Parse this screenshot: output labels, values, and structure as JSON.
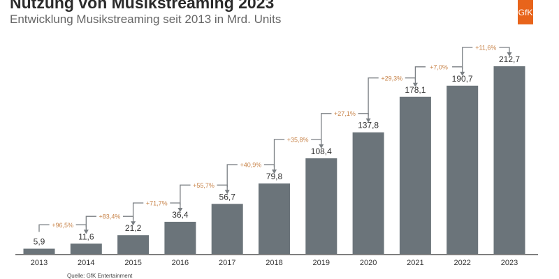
{
  "title": "Nutzung von Musikstreaming 2023",
  "subtitle": "Entwicklung Musikstreaming seit 2013 in Mrd. Units",
  "logo": "GfK",
  "source": "Quelle: GfK Entertainment",
  "colors": {
    "bar": "#6b747a",
    "growth": "#c8844a",
    "arrow": "#7a7f83",
    "logo": "#e8641b"
  },
  "chart_data": {
    "type": "bar",
    "categories": [
      "2013",
      "2014",
      "2015",
      "2016",
      "2017",
      "2018",
      "2019",
      "2020",
      "2021",
      "2022",
      "2023"
    ],
    "values": [
      5.9,
      11.6,
      21.2,
      36.4,
      56.7,
      79.8,
      108.4,
      137.8,
      178.1,
      190.7,
      212.7
    ],
    "value_labels": [
      "5,9",
      "11,6",
      "21,2",
      "36,4",
      "56,7",
      "79,8",
      "108,4",
      "137,8",
      "178,1",
      "190,7",
      "212,7"
    ],
    "growth_labels": [
      "+96,5%",
      "+83,4%",
      "+71,7%",
      "+55,7%",
      "+40,9%",
      "+35,8%",
      "+27,1%",
      "+29,3%",
      "+7,0%",
      "+11,6%"
    ],
    "ylim": [
      0,
      212.7
    ],
    "grid": false,
    "legend": "none"
  }
}
